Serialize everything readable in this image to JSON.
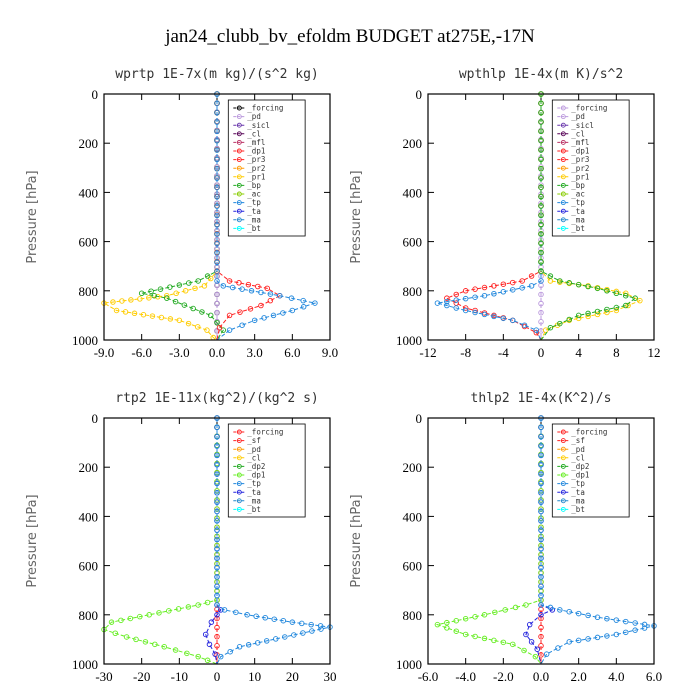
{
  "figure_title": "jan24_clubb_bv_efoldm  BUDGET at275E,-17N",
  "chart_data": [
    {
      "type": "line",
      "title": "wprtp  1E-7x(m kg)/(s^2 kg)",
      "ylabel": "Pressure [hPa]",
      "xlim": [
        -9,
        9
      ],
      "ylim": [
        1000,
        0
      ],
      "xticks": [
        "-9.0",
        "-6.0",
        "-3.0",
        "0.0",
        "3.0",
        "6.0",
        "9.0"
      ],
      "xtick_values": [
        -9,
        -6,
        -3,
        0,
        3,
        6,
        9
      ],
      "yticks": [
        "0",
        "200",
        "400",
        "600",
        "800",
        "1000"
      ],
      "ytick_values": [
        0,
        200,
        400,
        600,
        800,
        1000
      ],
      "legend": [
        "_forcing",
        "_pd",
        "_sicl",
        "_cl",
        "_mfl",
        "_dp1",
        "_pr3",
        "_pr2",
        "_pr1",
        "_bp",
        "_ac",
        "_tp",
        "_ta",
        "_ma",
        "_bt"
      ],
      "legend_colors": [
        "#000000",
        "#bb99dd",
        "#6633aa",
        "#550055",
        "#bb3366",
        "#ff2222",
        "#ff2222",
        "#ff9900",
        "#ffcc00",
        "#22aa22",
        "#88cc00",
        "#2288dd",
        "#2222dd",
        "#2288cc",
        "#00ffff"
      ],
      "legend_position": "top-right",
      "series": [
        {
          "name": "_forcing",
          "color": "#000000",
          "x": [
            0,
            0
          ],
          "y": [
            0,
            1000
          ]
        },
        {
          "name": "_pd",
          "color": "#bb99dd",
          "x": [
            0,
            0
          ],
          "y": [
            0,
            1000
          ]
        },
        {
          "name": "_pr1",
          "color": "#ffcc00",
          "x": [
            0,
            0,
            -1,
            -4,
            -9,
            -8,
            -3,
            -0.8,
            -0.3,
            0
          ],
          "y": [
            0,
            720,
            780,
            820,
            850,
            880,
            920,
            960,
            990,
            1000
          ]
        },
        {
          "name": "_bp",
          "color": "#22aa22",
          "x": [
            0,
            0,
            -1.5,
            -6,
            -4,
            -0.5,
            0.5,
            0
          ],
          "y": [
            0,
            720,
            760,
            810,
            830,
            900,
            960,
            1000
          ]
        },
        {
          "name": "_pr3",
          "color": "#ff2222",
          "x": [
            0,
            0,
            1,
            4,
            5,
            3.5,
            1,
            0.2,
            0
          ],
          "y": [
            0,
            720,
            760,
            790,
            820,
            860,
            900,
            950,
            1000
          ]
        },
        {
          "name": "_tp",
          "color": "#2288dd",
          "x": [
            0,
            0,
            0.5,
            5,
            7.8,
            6,
            3,
            1,
            0
          ],
          "y": [
            0,
            760,
            780,
            820,
            850,
            880,
            920,
            960,
            1000
          ]
        }
      ]
    },
    {
      "type": "line",
      "title": "wpthlp  1E-4x(m K)/s^2",
      "ylabel": "Pressure [hPa]",
      "xlim": [
        -12,
        12
      ],
      "ylim": [
        1000,
        0
      ],
      "xticks": [
        "-12",
        "-8",
        "-4",
        "0",
        "4",
        "8",
        "12"
      ],
      "xtick_values": [
        -12,
        -8,
        -4,
        0,
        4,
        8,
        12
      ],
      "yticks": [
        "0",
        "200",
        "400",
        "600",
        "800",
        "1000"
      ],
      "ytick_values": [
        0,
        200,
        400,
        600,
        800,
        1000
      ],
      "legend": [
        "_forcing",
        "_pd",
        "_sicl",
        "_cl",
        "_mfl",
        "_dp1",
        "_pr3",
        "_pr2",
        "_pr1",
        "_bp",
        "_ac",
        "_tp",
        "_ta",
        "_ma",
        "_bt"
      ],
      "legend_colors": [
        "#bb99dd",
        "#bb99dd",
        "#6633aa",
        "#550055",
        "#bb3366",
        "#ff2222",
        "#ff2222",
        "#ff9900",
        "#ffcc00",
        "#22aa22",
        "#88cc00",
        "#2288dd",
        "#2222dd",
        "#2288cc",
        "#00ffff"
      ],
      "legend_position": "top-right",
      "series": [
        {
          "name": "_forcing",
          "color": "#bb99dd",
          "x": [
            0,
            0
          ],
          "y": [
            0,
            1000
          ]
        },
        {
          "name": "_pr3",
          "color": "#ff2222",
          "x": [
            0,
            0,
            -2,
            -8,
            -10,
            -8,
            -3,
            -0.5,
            0
          ],
          "y": [
            0,
            720,
            760,
            800,
            830,
            870,
            920,
            970,
            1000
          ]
        },
        {
          "name": "_tp",
          "color": "#2288dd",
          "x": [
            0,
            0,
            -1,
            -6,
            -11,
            -8,
            -3,
            -0.5,
            0
          ],
          "y": [
            0,
            760,
            780,
            820,
            850,
            880,
            920,
            960,
            1000
          ]
        },
        {
          "name": "_pr1",
          "color": "#ffcc00",
          "x": [
            0,
            0,
            1,
            5,
            9,
            10.5,
            8,
            3,
            0.5,
            0
          ],
          "y": [
            0,
            720,
            760,
            780,
            810,
            840,
            880,
            920,
            960,
            1000
          ]
        },
        {
          "name": "_bp",
          "color": "#22aa22",
          "x": [
            0,
            0,
            2,
            6,
            10,
            9,
            4,
            1,
            0
          ],
          "y": [
            0,
            720,
            760,
            790,
            830,
            860,
            900,
            950,
            1000
          ]
        }
      ]
    },
    {
      "type": "line",
      "title": "rtp2  1E-11x(kg^2)/(kg^2 s)",
      "ylabel": "Pressure [hPa]",
      "xlim": [
        -30,
        30
      ],
      "ylim": [
        1000,
        0
      ],
      "xticks": [
        "-30",
        "-20",
        "-10",
        "0",
        "10",
        "20",
        "30"
      ],
      "xtick_values": [
        -30,
        -20,
        -10,
        0,
        10,
        20,
        30
      ],
      "yticks": [
        "0",
        "200",
        "400",
        "600",
        "800",
        "1000"
      ],
      "ytick_values": [
        0,
        200,
        400,
        600,
        800,
        1000
      ],
      "legend": [
        "_forcing",
        "_sf",
        "_pd",
        "_cl",
        "_dp2",
        "_dp1",
        "_tp",
        "_ta",
        "_ma",
        "_bt"
      ],
      "legend_colors": [
        "#ff2222",
        "#ff2222",
        "#ff9900",
        "#ffcc00",
        "#22aa22",
        "#66ee22",
        "#2288dd",
        "#2222dd",
        "#2288cc",
        "#00ffff"
      ],
      "legend_position": "top-right",
      "series": [
        {
          "name": "_forcing",
          "color": "#ff2222",
          "x": [
            0,
            0
          ],
          "y": [
            0,
            1000
          ]
        },
        {
          "name": "_dp1",
          "color": "#66ee22",
          "x": [
            0,
            0,
            -5,
            -18,
            -28,
            -30,
            -24,
            -14,
            -5,
            0
          ],
          "y": [
            0,
            740,
            760,
            800,
            830,
            860,
            890,
            930,
            970,
            1000
          ]
        },
        {
          "name": "_ta",
          "color": "#2222dd",
          "x": [
            0,
            0,
            1,
            0,
            -1.5,
            -3,
            -2,
            -0.5,
            0
          ],
          "y": [
            0,
            760,
            780,
            800,
            830,
            880,
            920,
            960,
            1000
          ]
        },
        {
          "name": "_tp",
          "color": "#2288dd",
          "x": [
            0,
            0,
            2,
            8,
            20,
            30,
            18,
            6,
            1,
            0
          ],
          "y": [
            0,
            760,
            780,
            800,
            830,
            850,
            890,
            930,
            970,
            1000
          ]
        }
      ]
    },
    {
      "type": "line",
      "title": "thlp2  1E-4x(K^2)/s",
      "ylabel": "Pressure [hPa]",
      "xlim": [
        -6,
        6
      ],
      "ylim": [
        1000,
        0
      ],
      "xticks": [
        "-6.0",
        "-4.0",
        "-2.0",
        "0.0",
        "2.0",
        "4.0",
        "6.0"
      ],
      "xtick_values": [
        -6,
        -4,
        -2,
        0,
        2,
        4,
        6
      ],
      "yticks": [
        "0",
        "200",
        "400",
        "600",
        "800",
        "1000"
      ],
      "ytick_values": [
        0,
        200,
        400,
        600,
        800,
        1000
      ],
      "legend": [
        "_forcing",
        "_sf",
        "_pd",
        "_cl",
        "_dp2",
        "_dp1",
        "_tp",
        "_ta",
        "_ma",
        "_bt"
      ],
      "legend_colors": [
        "#ff2222",
        "#ff2222",
        "#ff9900",
        "#ffcc00",
        "#22aa22",
        "#66ee22",
        "#2288dd",
        "#2222dd",
        "#2288cc",
        "#00ffff"
      ],
      "legend_position": "top-right",
      "series": [
        {
          "name": "_forcing",
          "color": "#ff2222",
          "x": [
            0,
            0
          ],
          "y": [
            0,
            1000
          ]
        },
        {
          "name": "_dp1",
          "color": "#66ee22",
          "x": [
            0,
            0,
            -0.8,
            -3,
            -5.5,
            -4,
            -1.5,
            -0.3,
            0
          ],
          "y": [
            0,
            740,
            760,
            800,
            840,
            880,
            920,
            970,
            1000
          ]
        },
        {
          "name": "_ta",
          "color": "#2222dd",
          "x": [
            0,
            0,
            0.6,
            0,
            -0.6,
            -0.8,
            -0.2,
            0
          ],
          "y": [
            0,
            760,
            780,
            800,
            840,
            880,
            940,
            1000
          ]
        },
        {
          "name": "_tp",
          "color": "#2288dd",
          "x": [
            0,
            0,
            1,
            3,
            6,
            4,
            1.5,
            0.3,
            0
          ],
          "y": [
            0,
            760,
            780,
            810,
            845,
            880,
            910,
            960,
            1000
          ]
        }
      ]
    }
  ]
}
